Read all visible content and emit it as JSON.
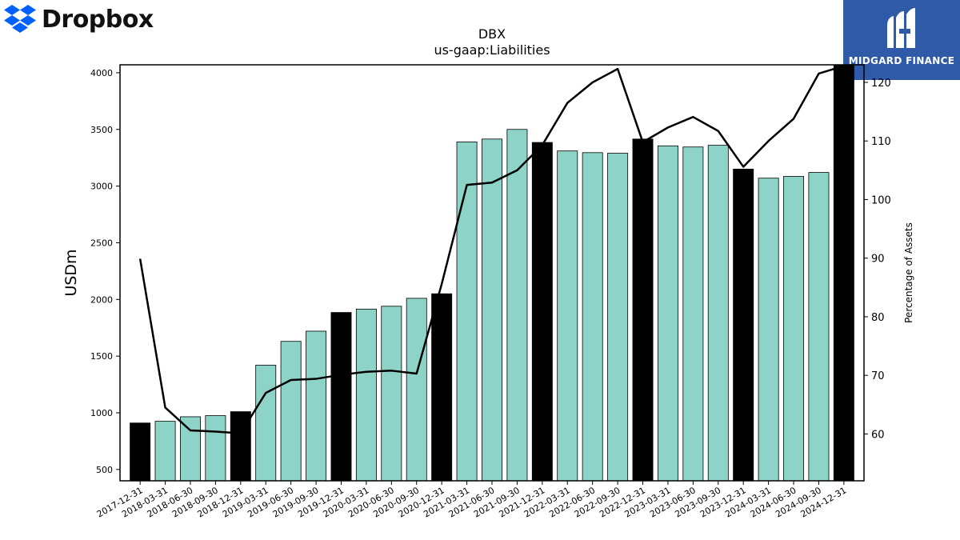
{
  "logos": {
    "left_name": "Dropbox",
    "left_icon": "dropbox-icon",
    "right_name": "MIDGARD FINANCE",
    "right_icon": "midgard-finance-icon",
    "right_bg": "#2f5aa8"
  },
  "chart_data": {
    "type": "bar",
    "title": "DBX",
    "subtitle": "us-gaap:Liabilities",
    "ylabel": "USDm",
    "y2label": "Percentage of Assets",
    "ylim": [
      400,
      4070
    ],
    "y2lim": [
      52,
      123
    ],
    "yticks": [
      500,
      1000,
      1500,
      2000,
      2500,
      3000,
      3500,
      4000
    ],
    "y2ticks": [
      60,
      70,
      80,
      90,
      100,
      110,
      120
    ],
    "grid": false,
    "categories": [
      "2017-12-31",
      "2018-03-31",
      "2018-06-30",
      "2018-09-30",
      "2018-12-31",
      "2019-03-31",
      "2019-06-30",
      "2019-09-30",
      "2019-12-31",
      "2020-03-31",
      "2020-06-30",
      "2020-09-30",
      "2020-12-31",
      "2021-03-31",
      "2021-06-30",
      "2021-09-30",
      "2021-12-31",
      "2022-03-31",
      "2022-06-30",
      "2022-09-30",
      "2022-12-31",
      "2023-03-31",
      "2023-06-30",
      "2023-09-30",
      "2023-12-31",
      "2024-03-31",
      "2024-06-30",
      "2024-09-30",
      "2024-12-31"
    ],
    "series": [
      {
        "kind": "bar",
        "values": [
          910,
          925,
          965,
          975,
          1010,
          1420,
          1630,
          1720,
          1885,
          1915,
          1940,
          2010,
          2050,
          3390,
          3415,
          3500,
          3385,
          3310,
          3295,
          3290,
          3415,
          3355,
          3345,
          3360,
          3150,
          3070,
          3085,
          3120,
          4070
        ],
        "year_end_color": "#000000",
        "quarter_color": "#8dd3c7"
      },
      {
        "kind": "line",
        "axis": "right",
        "color": "#000000",
        "values": [
          89.9,
          64.5,
          60.6,
          60.4,
          60.1,
          67.0,
          69.2,
          69.4,
          70.1,
          70.6,
          70.8,
          70.3,
          85.6,
          102.5,
          102.9,
          105.0,
          109.3,
          116.5,
          120.0,
          122.3,
          109.8,
          112.3,
          114.1,
          111.7,
          105.6,
          110.0,
          113.8,
          121.5,
          122.8
        ]
      }
    ]
  }
}
